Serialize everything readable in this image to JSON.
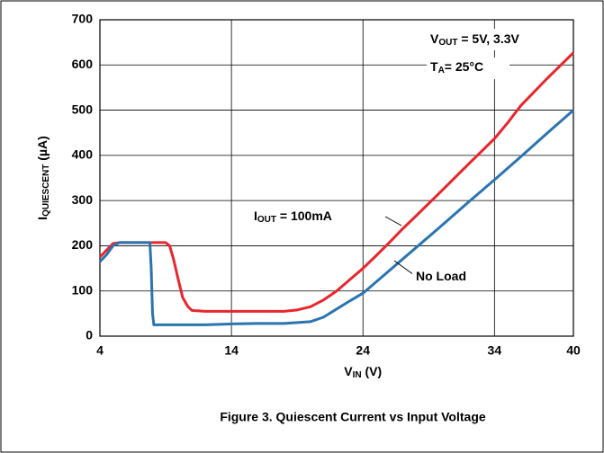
{
  "chart_data": {
    "type": "line",
    "caption": "Figure 3. Quiescent Current vs Input Voltage",
    "xlabel": [
      {
        "t": "V"
      },
      {
        "t": "IN",
        "sub": true
      },
      {
        "t": " (V)"
      }
    ],
    "ylabel": [
      {
        "t": "I"
      },
      {
        "t": "QUIESCENT",
        "sub": true
      },
      {
        "t": " (µA)"
      }
    ],
    "annotations": [
      [
        {
          "t": "V"
        },
        {
          "t": "OUT",
          "sub": true
        },
        {
          "t": " = 5V, 3.3V"
        }
      ],
      [
        {
          "t": "T"
        },
        {
          "t": "A",
          "sub": true
        },
        {
          "t": "= 25°C"
        }
      ]
    ],
    "xlim": [
      4,
      40
    ],
    "xticks": [
      4,
      14,
      24,
      34,
      40
    ],
    "ylim": [
      0,
      700
    ],
    "yticks": [
      0,
      100,
      200,
      300,
      400,
      500,
      600,
      700
    ],
    "grid": true,
    "series": [
      {
        "name": [
          {
            "t": "I"
          },
          {
            "t": "OUT",
            "sub": true
          },
          {
            "t": " = 100mA"
          }
        ],
        "color": "#e8262d",
        "x": [
          4,
          4.5,
          5,
          5.5,
          6,
          8,
          9,
          9.3,
          9.6,
          10,
          10.3,
          10.7,
          11,
          12,
          14,
          16,
          18,
          19,
          20,
          21,
          22,
          23,
          24,
          25,
          26,
          27,
          28,
          30,
          32,
          34,
          35,
          36,
          38,
          40
        ],
        "values": [
          175,
          190,
          205,
          207,
          207,
          207,
          207,
          200,
          170,
          120,
          85,
          65,
          57,
          55,
          55,
          55,
          55,
          58,
          65,
          80,
          100,
          125,
          150,
          178,
          207,
          237,
          265,
          322,
          380,
          437,
          472,
          510,
          570,
          627
        ]
      },
      {
        "name": [
          {
            "t": "No Load"
          }
        ],
        "color": "#2a74b0",
        "x": [
          4,
          4.5,
          5,
          5.5,
          6,
          7.5,
          7.8,
          7.9,
          8,
          8.1,
          9,
          12,
          14,
          16,
          18,
          19,
          20,
          21,
          22,
          23,
          24,
          26,
          28,
          30,
          32,
          34,
          36,
          38,
          40
        ],
        "values": [
          165,
          180,
          200,
          207,
          207,
          207,
          207,
          150,
          50,
          25,
          25,
          25,
          27,
          28,
          28,
          30,
          32,
          42,
          60,
          78,
          95,
          145,
          195,
          245,
          296,
          346,
          397,
          449,
          500
        ]
      }
    ]
  }
}
